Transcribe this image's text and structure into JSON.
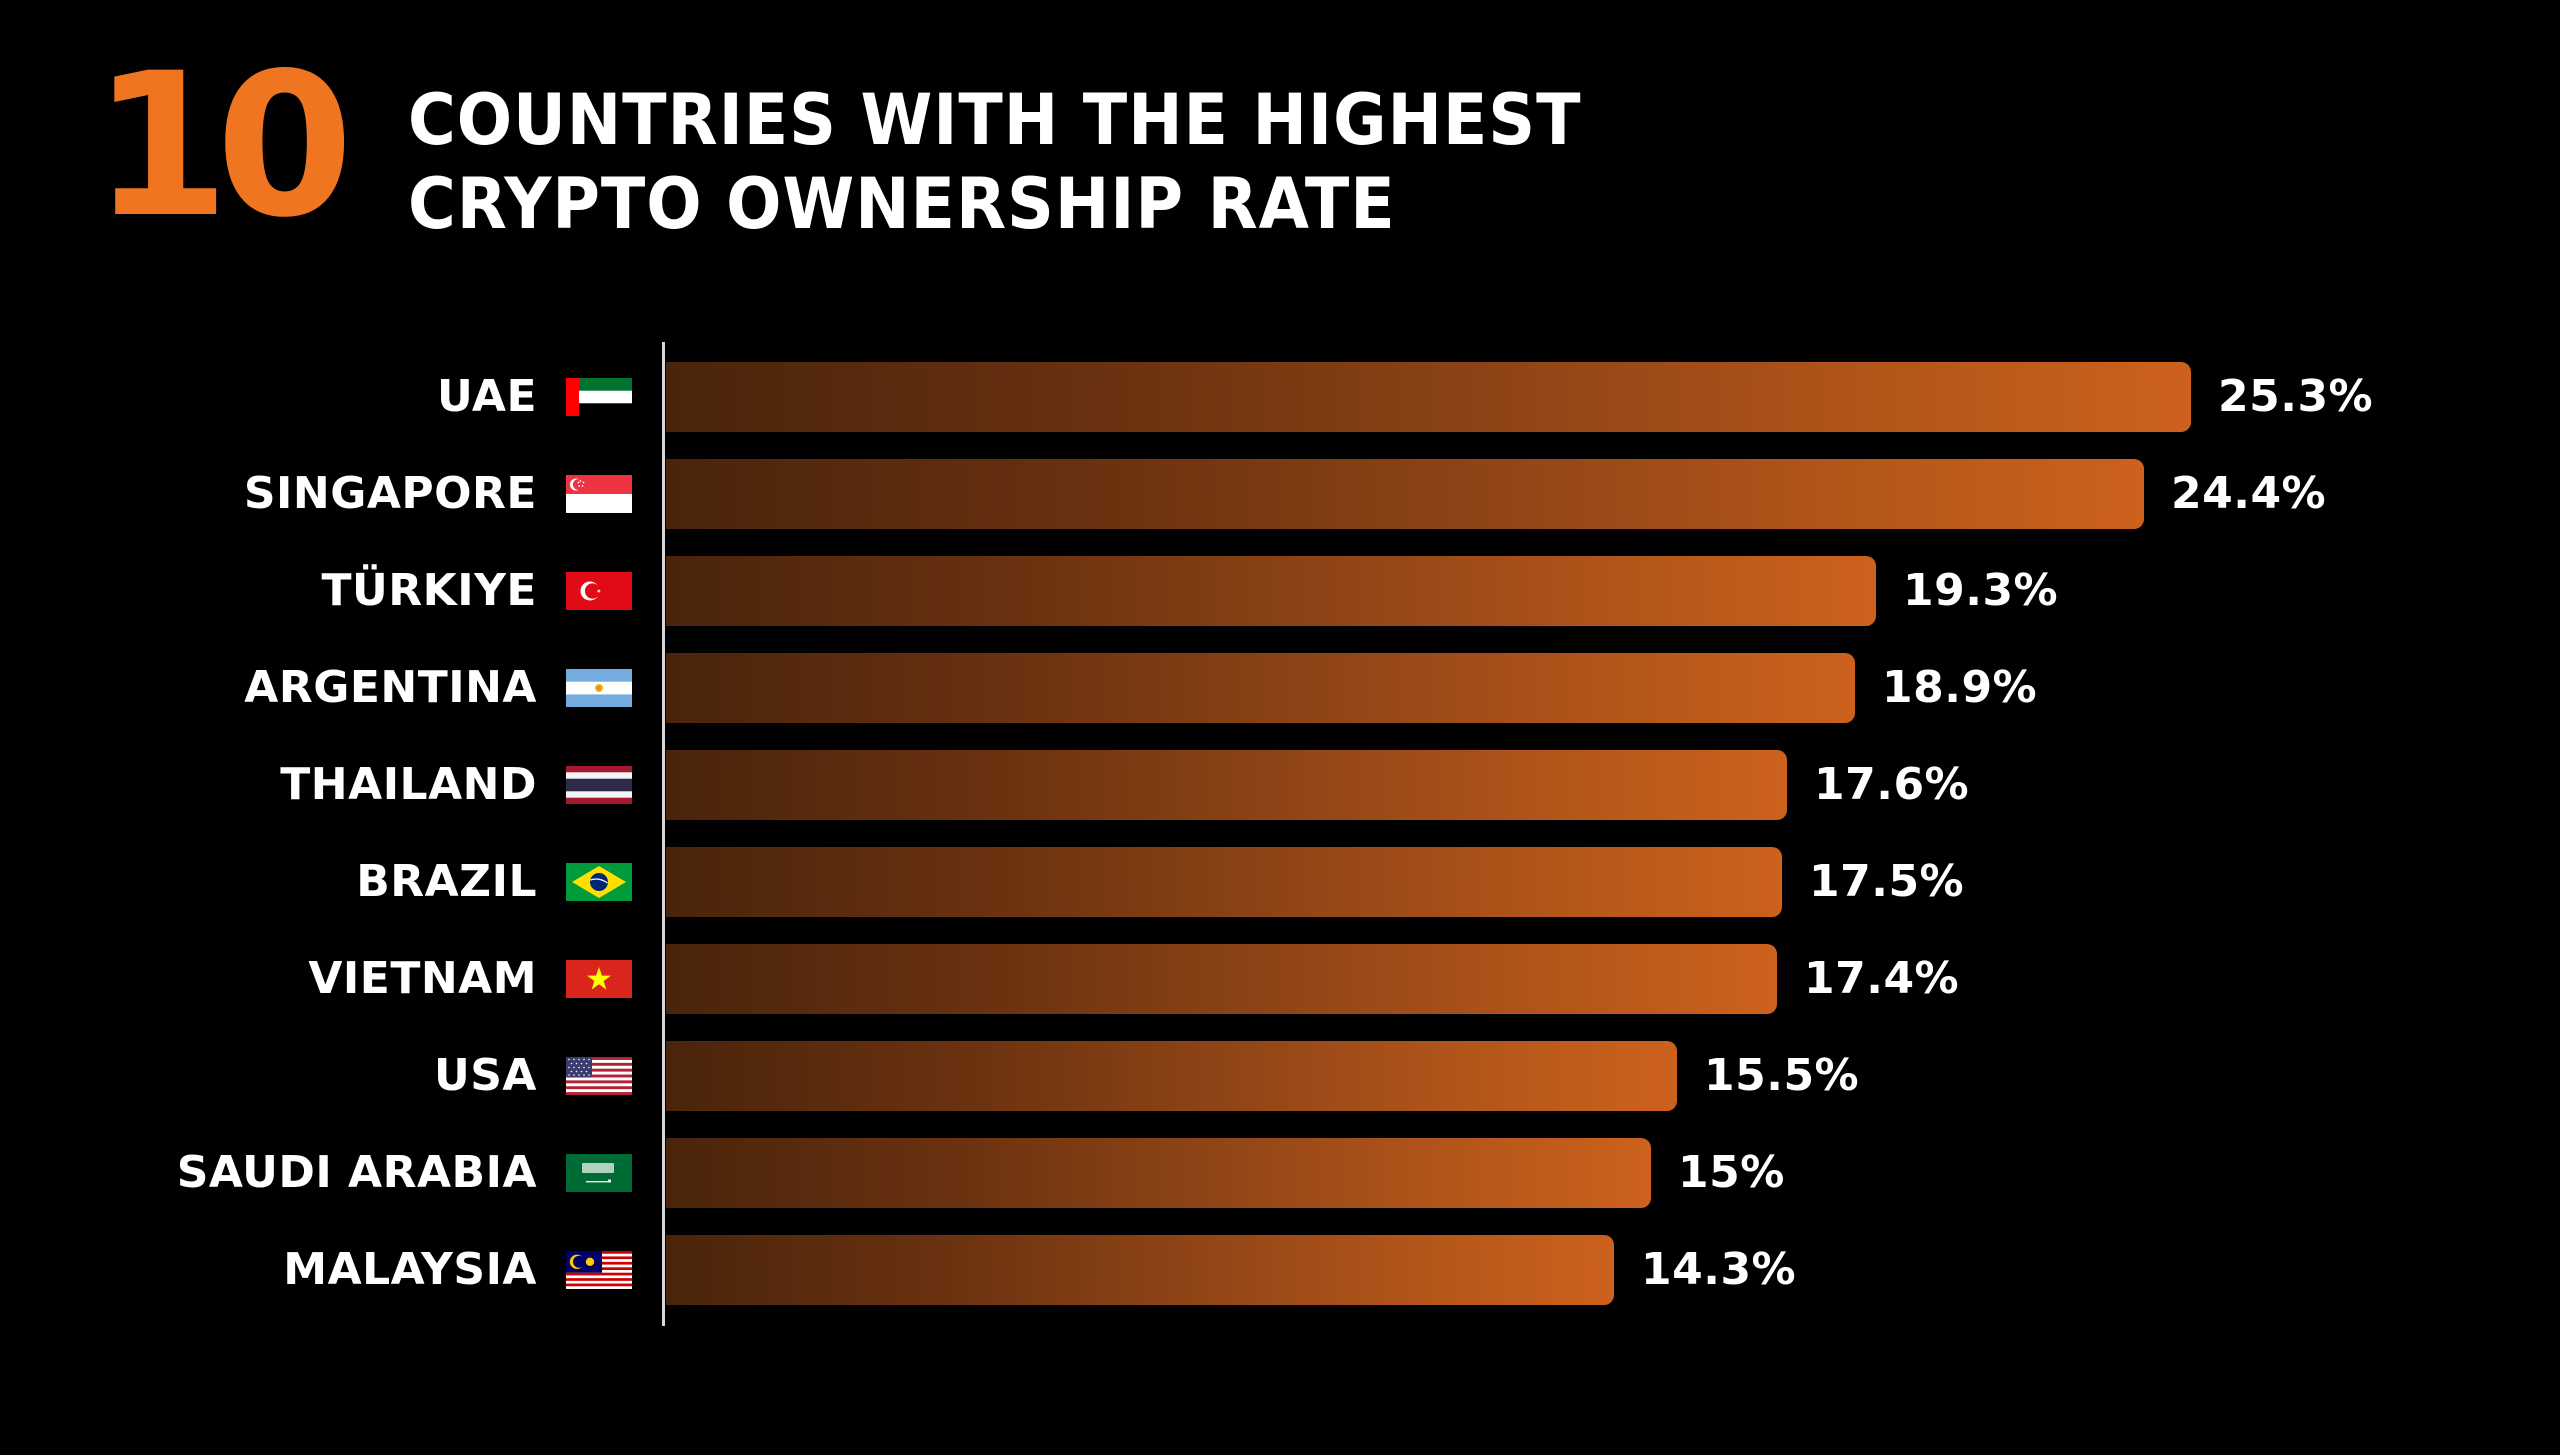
{
  "header": {
    "number": "10",
    "title_line1": "COUNTRIES WITH THE HIGHEST",
    "title_line2": "CRYPTO OWNERSHIP RATE"
  },
  "colors": {
    "accent": "#F07521",
    "background": "#000000",
    "bar_start": "#4A240B",
    "bar_end": "#CD611D",
    "text": "#FFFFFF"
  },
  "rows": [
    {
      "country": "UAE",
      "flag": "uae-flag-icon",
      "value": 25.3,
      "label": "25.3%"
    },
    {
      "country": "SINGAPORE",
      "flag": "singapore-flag-icon",
      "value": 24.4,
      "label": "24.4%"
    },
    {
      "country": "TÜRKIYE",
      "flag": "turkiye-flag-icon",
      "value": 19.3,
      "label": "19.3%"
    },
    {
      "country": "ARGENTINA",
      "flag": "argentina-flag-icon",
      "value": 18.9,
      "label": "18.9%"
    },
    {
      "country": "THAILAND",
      "flag": "thailand-flag-icon",
      "value": 17.6,
      "label": "17.6%"
    },
    {
      "country": "BRAZIL",
      "flag": "brazil-flag-icon",
      "value": 17.5,
      "label": "17.5%"
    },
    {
      "country": "VIETNAM",
      "flag": "vietnam-flag-icon",
      "value": 17.4,
      "label": "17.4%"
    },
    {
      "country": "USA",
      "flag": "usa-flag-icon",
      "value": 15.5,
      "label": "15.5%"
    },
    {
      "country": "SAUDI ARABIA",
      "flag": "saudi-arabia-flag-icon",
      "value": 15,
      "label": "15%"
    },
    {
      "country": "MALAYSIA",
      "flag": "malaysia-flag-icon",
      "value": 14.3,
      "label": "14.3%"
    }
  ],
  "chart_data": {
    "type": "bar",
    "orientation": "horizontal",
    "title": "10 Countries with the Highest Crypto Ownership Rate",
    "categories": [
      "UAE",
      "SINGAPORE",
      "TÜRKIYE",
      "ARGENTINA",
      "THAILAND",
      "BRAZIL",
      "VIETNAM",
      "USA",
      "SAUDI ARABIA",
      "MALAYSIA"
    ],
    "values": [
      25.3,
      24.4,
      19.3,
      18.9,
      17.6,
      17.5,
      17.4,
      15.5,
      15,
      14.3
    ],
    "value_labels": [
      "25.3%",
      "24.4%",
      "19.3%",
      "18.9%",
      "17.6%",
      "17.5%",
      "17.4%",
      "15.5%",
      "15%",
      "14.3%"
    ],
    "xlabel": "",
    "ylabel": "",
    "unit": "%",
    "grid": false,
    "legend": "none"
  }
}
